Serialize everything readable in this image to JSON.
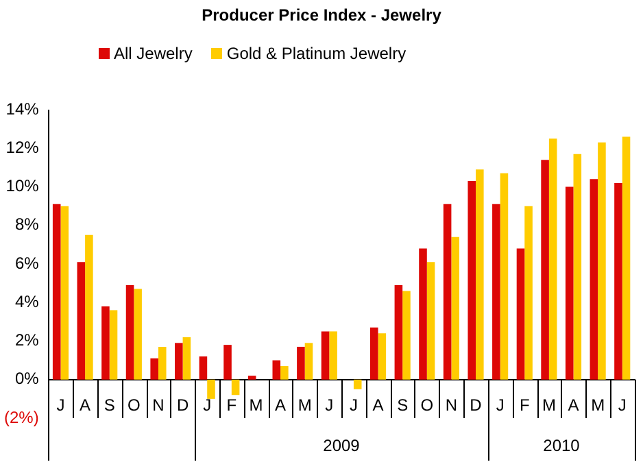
{
  "chart_data": {
    "type": "bar",
    "title": "Producer Price Index - Jewelry",
    "categories": [
      "J",
      "A",
      "S",
      "O",
      "N",
      "D",
      "J",
      "F",
      "M",
      "A",
      "M",
      "J",
      "J",
      "A",
      "S",
      "O",
      "N",
      "D",
      "J",
      "F",
      "M",
      "A",
      "M",
      "J"
    ],
    "series": [
      {
        "name": "All Jewelry",
        "color": "#dd0806",
        "values": [
          9.1,
          6.1,
          3.8,
          4.9,
          1.1,
          1.9,
          1.2,
          1.8,
          0.2,
          1.0,
          1.7,
          2.5,
          0,
          2.7,
          4.9,
          6.8,
          9.1,
          10.3,
          9.1,
          6.8,
          11.4,
          10.0,
          10.4,
          10.2
        ]
      },
      {
        "name": "Gold & Platinum Jewelry",
        "color": "#ffcc00",
        "values": [
          9.0,
          7.5,
          3.6,
          4.7,
          1.7,
          2.2,
          -1.0,
          -0.8,
          0,
          0.7,
          1.9,
          2.5,
          -0.5,
          2.4,
          4.6,
          6.1,
          7.4,
          10.9,
          10.7,
          9.0,
          12.5,
          11.7,
          12.3,
          12.6
        ]
      }
    ],
    "ylim": [
      -2,
      14
    ],
    "yticks": [
      {
        "value": -2,
        "label": "(2%)"
      },
      {
        "value": 0,
        "label": "0%"
      },
      {
        "value": 2,
        "label": "2%"
      },
      {
        "value": 4,
        "label": "4%"
      },
      {
        "value": 6,
        "label": "6%"
      },
      {
        "value": 8,
        "label": "8%"
      },
      {
        "value": 10,
        "label": "10%"
      },
      {
        "value": 12,
        "label": "12%"
      },
      {
        "value": 14,
        "label": "14%"
      }
    ],
    "annotations": [
      "2009",
      "2010"
    ],
    "grid": false,
    "legend": "top left"
  }
}
